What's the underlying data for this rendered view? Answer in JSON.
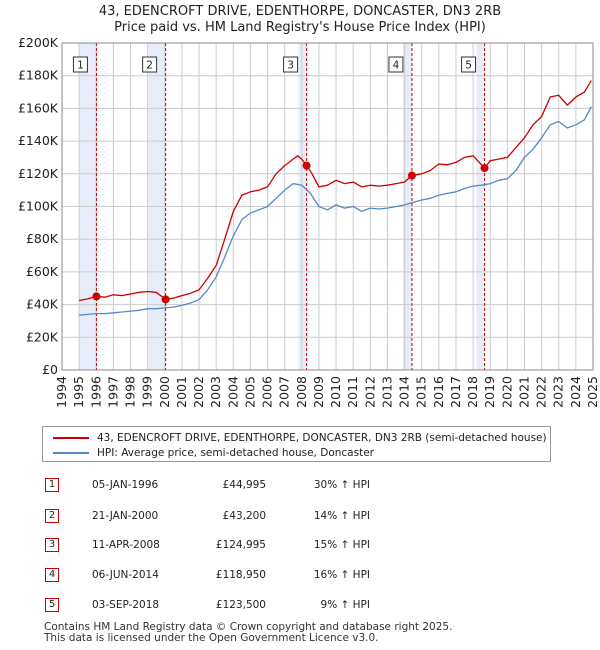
{
  "chart_data": {
    "type": "line",
    "title": "43, EDENCROFT DRIVE, EDENTHORPE, DONCASTER, DN3 2RB",
    "subtitle": "Price paid vs. HM Land Registry's House Price Index (HPI)",
    "x_range": [
      1994,
      2025
    ],
    "ylim": [
      0,
      200000
    ],
    "y_ticks": [
      0,
      20000,
      40000,
      60000,
      80000,
      100000,
      120000,
      140000,
      160000,
      180000,
      200000
    ],
    "y_tick_labels": [
      "£0",
      "£20K",
      "£40K",
      "£60K",
      "£80K",
      "£100K",
      "£120K",
      "£140K",
      "£160K",
      "£180K",
      "£200K"
    ],
    "x_ticks": [
      1994,
      1995,
      1996,
      1997,
      1998,
      1999,
      2000,
      2001,
      2002,
      2003,
      2004,
      2005,
      2006,
      2007,
      2008,
      2009,
      2010,
      2011,
      2012,
      2013,
      2014,
      2015,
      2016,
      2017,
      2018,
      2019,
      2020,
      2021,
      2022,
      2023,
      2024,
      2025
    ],
    "x_tick_labels": [
      "1994",
      "1995",
      "1996",
      "1997",
      "1998",
      "1999",
      "2000",
      "2001",
      "2002",
      "2003",
      "2004",
      "2005",
      "2006",
      "2007",
      "2008",
      "2009",
      "2010",
      "2011",
      "2012",
      "2013",
      "2014",
      "2015",
      "2016",
      "2017",
      "2018",
      "2019",
      "2020",
      "2021",
      "2022",
      "2023",
      "2024",
      "2025"
    ],
    "grid": true,
    "shaded_ranges": [
      [
        1995.0,
        1996.0
      ],
      [
        1999.05,
        2000.05
      ],
      [
        2007.8,
        2008.27
      ],
      [
        2013.9,
        2014.43
      ],
      [
        2018.2,
        2018.67
      ]
    ],
    "series": [
      {
        "name": "43, EDENCROFT DRIVE, EDENTHORPE, DONCASTER, DN3 2RB (semi-detached house)",
        "color": "#cc0000",
        "x": [
          1995.0,
          1995.5,
          1996.01,
          1996.5,
          1997.0,
          1997.5,
          1998.0,
          1998.5,
          1999.0,
          1999.5,
          2000.05,
          2000.5,
          2001.0,
          2001.5,
          2002.0,
          2002.5,
          2003.0,
          2003.5,
          2004.0,
          2004.5,
          2005.0,
          2005.5,
          2006.0,
          2006.5,
          2007.0,
          2007.5,
          2007.75,
          2008.0,
          2008.28,
          2008.6,
          2009.0,
          2009.5,
          2010.0,
          2010.5,
          2011.0,
          2011.5,
          2012.0,
          2012.5,
          2013.0,
          2013.5,
          2014.0,
          2014.43,
          2015.0,
          2015.5,
          2016.0,
          2016.5,
          2017.0,
          2017.5,
          2018.0,
          2018.67,
          2019.0,
          2019.5,
          2020.0,
          2020.5,
          2021.0,
          2021.5,
          2022.0,
          2022.5,
          2023.0,
          2023.5,
          2024.0,
          2024.5,
          2024.9
        ],
        "values": [
          42500,
          43500,
          44995,
          44500,
          46000,
          45500,
          46500,
          47500,
          48000,
          47500,
          43200,
          44000,
          45500,
          47000,
          49000,
          56000,
          64000,
          80000,
          97000,
          107000,
          109000,
          110000,
          112000,
          120000,
          125000,
          129000,
          131000,
          129000,
          124995,
          120000,
          112000,
          113000,
          116000,
          114000,
          115000,
          112000,
          113000,
          112500,
          113000,
          114000,
          115000,
          118950,
          120000,
          122000,
          126000,
          125500,
          127000,
          130000,
          131000,
          123500,
          128000,
          129000,
          130000,
          136000,
          142000,
          150000,
          155000,
          167000,
          168000,
          162000,
          167000,
          170000,
          177000
        ]
      },
      {
        "name": "HPI: Average price, semi-detached house, Doncaster",
        "color": "#5588cc",
        "x": [
          1995.0,
          1995.5,
          1996.0,
          1996.5,
          1997.0,
          1997.5,
          1998.0,
          1998.5,
          1999.0,
          1999.5,
          2000.0,
          2000.5,
          2001.0,
          2001.5,
          2002.0,
          2002.5,
          2003.0,
          2003.5,
          2004.0,
          2004.5,
          2005.0,
          2005.5,
          2006.0,
          2006.5,
          2007.0,
          2007.5,
          2008.0,
          2008.5,
          2009.0,
          2009.5,
          2010.0,
          2010.5,
          2011.0,
          2011.5,
          2012.0,
          2012.5,
          2013.0,
          2013.5,
          2014.0,
          2014.5,
          2015.0,
          2015.5,
          2016.0,
          2016.5,
          2017.0,
          2017.5,
          2018.0,
          2018.5,
          2019.0,
          2019.5,
          2020.0,
          2020.5,
          2021.0,
          2021.5,
          2022.0,
          2022.5,
          2023.0,
          2023.5,
          2024.0,
          2024.5,
          2024.9
        ],
        "values": [
          33500,
          34000,
          34500,
          34500,
          35000,
          35500,
          36000,
          36500,
          37500,
          37500,
          38000,
          38500,
          39500,
          41000,
          43000,
          49000,
          57000,
          69000,
          82000,
          92000,
          96000,
          98000,
          100000,
          105000,
          110000,
          114000,
          113000,
          108000,
          100000,
          98000,
          101000,
          99000,
          100000,
          97000,
          99000,
          98500,
          99000,
          100000,
          101000,
          102500,
          104000,
          105000,
          107000,
          108000,
          109000,
          111000,
          112500,
          113000,
          114000,
          116000,
          117000,
          122000,
          130000,
          135000,
          142000,
          150000,
          152000,
          148000,
          150000,
          153000,
          161000
        ]
      }
    ],
    "sale_markers": [
      {
        "label": "1",
        "x": 1996.01,
        "value": 44995
      },
      {
        "label": "2",
        "x": 2000.05,
        "value": 43200
      },
      {
        "label": "3",
        "x": 2008.28,
        "value": 124995
      },
      {
        "label": "4",
        "x": 2014.43,
        "value": 118950
      },
      {
        "label": "5",
        "x": 2018.67,
        "value": 123500
      }
    ],
    "colors": {
      "grid": "#cccccc",
      "shade": "#e6ecf8",
      "marker_line": "#cc0000"
    }
  },
  "legend": {
    "property": "43, EDENCROFT DRIVE, EDENTHORPE, DONCASTER, DN3 2RB (semi-detached house)",
    "hpi": "HPI: Average price, semi-detached house, Doncaster"
  },
  "sales": [
    {
      "num": "1",
      "date": "05-JAN-1996",
      "price": "£44,995",
      "hpi": "30% ↑ HPI"
    },
    {
      "num": "2",
      "date": "21-JAN-2000",
      "price": "£43,200",
      "hpi": "14% ↑ HPI"
    },
    {
      "num": "3",
      "date": "11-APR-2008",
      "price": "£124,995",
      "hpi": "15% ↑ HPI"
    },
    {
      "num": "4",
      "date": "06-JUN-2014",
      "price": "£118,950",
      "hpi": "16% ↑ HPI"
    },
    {
      "num": "5",
      "date": "03-SEP-2018",
      "price": "£123,500",
      "hpi": "9% ↑ HPI"
    }
  ],
  "footer": {
    "line1": "Contains HM Land Registry data © Crown copyright and database right 2025.",
    "line2": "This data is licensed under the Open Government Licence v3.0."
  }
}
